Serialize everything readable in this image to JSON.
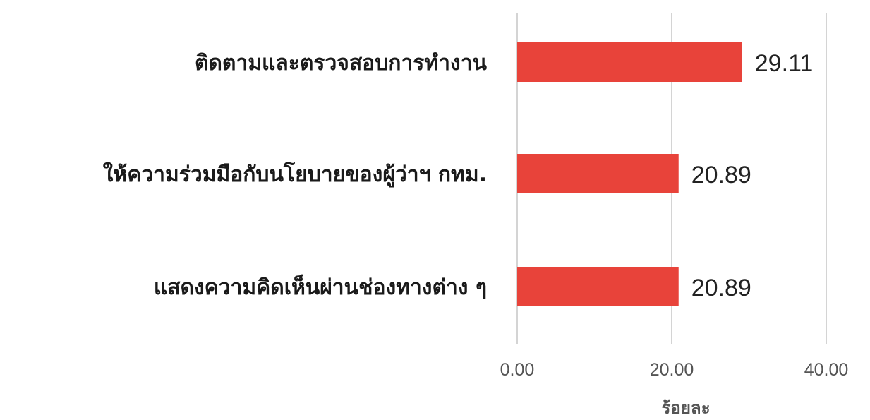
{
  "chart_data": {
    "type": "bar",
    "orientation": "horizontal",
    "categories": [
      "ติดตามและตรวจสอบการทำงาน",
      "ให้ความร่วมมือกับนโยบายของผู้ว่าฯ กทม.",
      "แสดงความคิดเห็นผ่านช่องทางต่าง ๆ"
    ],
    "values": [
      29.11,
      20.89,
      20.89
    ],
    "value_labels": [
      "29.11",
      "20.89",
      "20.89"
    ],
    "xlabel": "ร้อยละ",
    "xlim": [
      0,
      40
    ],
    "xticks": [
      0,
      20,
      40
    ],
    "xtick_labels": [
      "0.00",
      "20.00",
      "40.00"
    ],
    "grid": true,
    "bar_color": "#e8433a",
    "grid_color": "#d4d4d4"
  }
}
